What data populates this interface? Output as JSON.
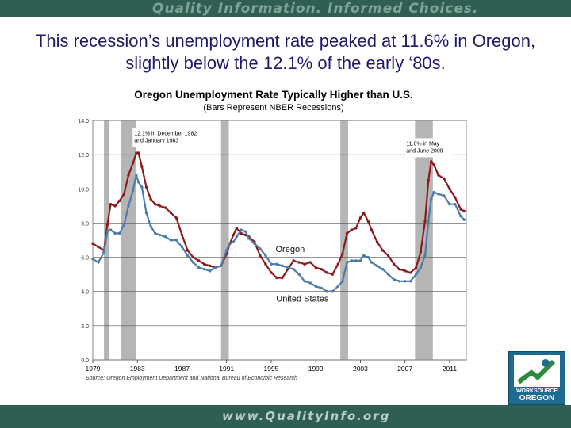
{
  "header": {
    "tagline": "Quality Information. Informed Choices."
  },
  "slide": {
    "title": "This recession’s unemployment rate peaked at 11.6% in Oregon, slightly below the 12.1% of the early ‘80s."
  },
  "footer": {
    "url": "www.QualityInfo.org"
  },
  "logo": {
    "line1": "WORKSOURCE",
    "line2": "OREGON"
  },
  "colors": {
    "oregon": "#8b1a1a",
    "us": "#4a7cab",
    "recession": "#b5b5b5",
    "band": "#2f5f52"
  },
  "chart_data": {
    "type": "line",
    "title": "Oregon Unemployment Rate Typically Higher than U.S.",
    "subtitle": "(Bars Represent NBER Recessions)",
    "source": "Source: Oregon Employment Department and National Bureau of Economic Research",
    "xlim": [
      1979,
      2012.5
    ],
    "ylim": [
      0,
      14
    ],
    "x_ticks": [
      "1979",
      "1983",
      "1987",
      "1991",
      "1995",
      "1999",
      "2003",
      "2007",
      "2011"
    ],
    "y_ticks": [
      "0.0",
      "2.0",
      "4.0",
      "6.0",
      "8.0",
      "10.0",
      "12.0",
      "14.0"
    ],
    "grid": true,
    "recessions": [
      [
        1980.0,
        1980.5
      ],
      [
        1981.5,
        1982.9
      ],
      [
        1990.5,
        1991.2
      ],
      [
        2001.2,
        2001.9
      ],
      [
        2007.9,
        2009.5
      ]
    ],
    "series": [
      {
        "name": "Oregon",
        "x": [
          1979.0,
          1979.5,
          1980.0,
          1980.3,
          1980.6,
          1981.0,
          1981.4,
          1981.8,
          1982.2,
          1982.6,
          1982.9,
          1983.1,
          1983.4,
          1983.8,
          1984.2,
          1984.6,
          1985.0,
          1985.5,
          1986.0,
          1986.5,
          1987.0,
          1987.5,
          1988.0,
          1988.5,
          1989.0,
          1989.5,
          1990.0,
          1990.5,
          1991.0,
          1991.3,
          1991.6,
          1991.9,
          1992.3,
          1992.7,
          1993.0,
          1993.5,
          1994.0,
          1994.5,
          1995.0,
          1995.5,
          1996.0,
          1996.5,
          1997.0,
          1997.5,
          1998.0,
          1998.5,
          1999.0,
          1999.5,
          2000.0,
          2000.5,
          2001.0,
          2001.4,
          2001.8,
          2002.2,
          2002.6,
          2003.0,
          2003.3,
          2003.7,
          2004.0,
          2004.5,
          2005.0,
          2005.5,
          2006.0,
          2006.5,
          2007.0,
          2007.5,
          2008.0,
          2008.4,
          2008.8,
          2009.1,
          2009.35,
          2009.6,
          2010.0,
          2010.5,
          2011.0,
          2011.5,
          2012.0,
          2012.3
        ],
        "values": [
          6.8,
          6.6,
          6.4,
          7.9,
          9.1,
          9.0,
          9.3,
          9.7,
          10.8,
          11.5,
          12.1,
          12.1,
          11.3,
          10.1,
          9.4,
          9.1,
          9.0,
          8.9,
          8.6,
          8.3,
          7.3,
          6.4,
          6.0,
          5.8,
          5.6,
          5.5,
          5.4,
          5.5,
          6.2,
          6.8,
          7.3,
          7.7,
          7.4,
          7.3,
          7.2,
          6.9,
          6.1,
          5.6,
          5.1,
          4.8,
          4.8,
          5.3,
          5.8,
          5.7,
          5.6,
          5.7,
          5.4,
          5.3,
          5.1,
          5.0,
          5.6,
          6.2,
          7.4,
          7.6,
          7.7,
          8.3,
          8.6,
          8.1,
          7.6,
          6.9,
          6.4,
          6.1,
          5.6,
          5.3,
          5.2,
          5.1,
          5.4,
          6.3,
          8.1,
          10.5,
          11.6,
          11.4,
          10.8,
          10.6,
          10.0,
          9.5,
          8.8,
          8.7
        ]
      },
      {
        "name": "United States",
        "x": [
          1979.0,
          1979.5,
          1980.0,
          1980.3,
          1980.6,
          1981.0,
          1981.4,
          1981.8,
          1982.2,
          1982.6,
          1982.9,
          1983.1,
          1983.4,
          1983.8,
          1984.2,
          1984.6,
          1985.0,
          1985.5,
          1986.0,
          1986.5,
          1987.0,
          1987.5,
          1988.0,
          1988.5,
          1989.0,
          1989.5,
          1990.0,
          1990.5,
          1991.0,
          1991.3,
          1991.6,
          1991.9,
          1992.3,
          1992.7,
          1993.0,
          1993.5,
          1994.0,
          1994.5,
          1995.0,
          1995.5,
          1996.0,
          1996.5,
          1997.0,
          1997.5,
          1998.0,
          1998.5,
          1999.0,
          1999.5,
          2000.0,
          2000.5,
          2001.0,
          2001.4,
          2001.8,
          2002.2,
          2002.6,
          2003.0,
          2003.3,
          2003.7,
          2004.0,
          2004.5,
          2005.0,
          2005.5,
          2006.0,
          2006.5,
          2007.0,
          2007.5,
          2008.0,
          2008.4,
          2008.8,
          2009.1,
          2009.35,
          2009.6,
          2010.0,
          2010.5,
          2011.0,
          2011.5,
          2012.0,
          2012.3
        ],
        "values": [
          5.9,
          5.7,
          6.3,
          7.5,
          7.6,
          7.4,
          7.4,
          7.9,
          9.0,
          9.9,
          10.8,
          10.4,
          10.1,
          8.6,
          7.8,
          7.4,
          7.3,
          7.2,
          7.0,
          7.0,
          6.6,
          6.1,
          5.7,
          5.4,
          5.3,
          5.2,
          5.4,
          5.5,
          6.4,
          6.8,
          6.9,
          7.2,
          7.6,
          7.5,
          7.1,
          6.8,
          6.5,
          6.1,
          5.6,
          5.6,
          5.5,
          5.4,
          5.3,
          5.0,
          4.6,
          4.5,
          4.3,
          4.2,
          4.0,
          4.0,
          4.3,
          4.6,
          5.7,
          5.8,
          5.8,
          5.8,
          6.1,
          6.0,
          5.7,
          5.5,
          5.3,
          5.0,
          4.7,
          4.6,
          4.6,
          4.6,
          5.0,
          5.4,
          6.1,
          8.1,
          9.4,
          9.8,
          9.7,
          9.6,
          9.1,
          9.1,
          8.4,
          8.2
        ]
      }
    ],
    "annotations": [
      {
        "id": "label_us",
        "text": "United States",
        "x": 1997.8,
        "y": 3.4
      },
      {
        "id": "label_oregon",
        "text": "Oregon",
        "x": 1996.7,
        "y": 6.3
      },
      {
        "id": "callout_1982",
        "lines": [
          "12.1% in December 1982",
          "and January 1983"
        ],
        "x": 1983.0,
        "y": 13.1
      },
      {
        "id": "callout_2009",
        "lines": [
          "11.6% in May",
          "and June 2009"
        ],
        "x": 2007.4,
        "y": 12.5
      }
    ]
  }
}
